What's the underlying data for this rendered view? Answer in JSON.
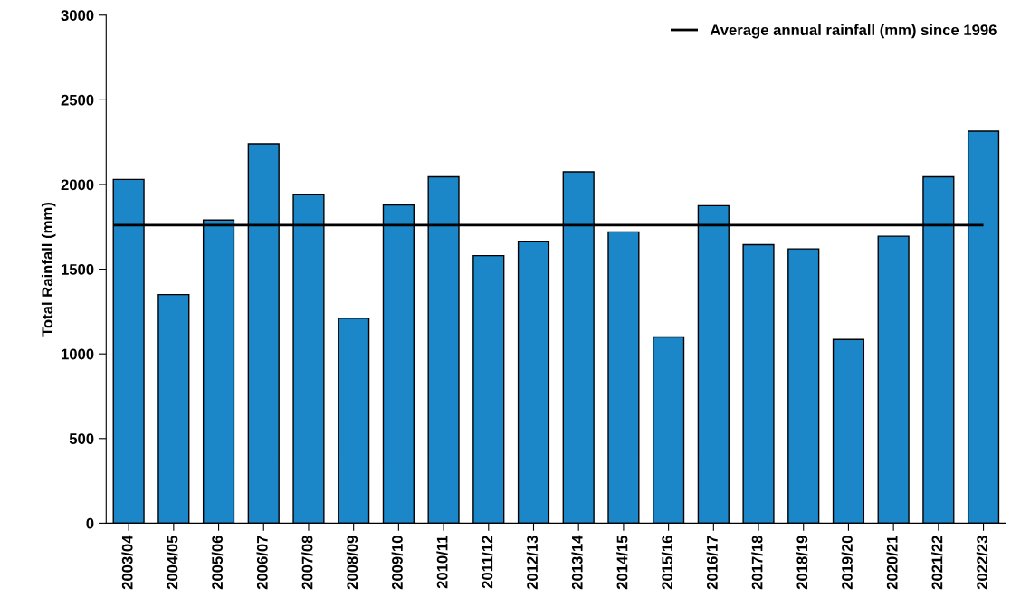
{
  "chart_data": {
    "type": "bar",
    "ylabel": "Total Rainfall (mm)",
    "categories": [
      "2003/04",
      "2004/05",
      "2005/06",
      "2006/07",
      "2007/08",
      "2008/09",
      "2009/10",
      "2010/11",
      "2011/12",
      "2012/13",
      "2013/14",
      "2014/15",
      "2015/16",
      "2016/17",
      "2017/18",
      "2018/19",
      "2019/20",
      "2020/21",
      "2021/22",
      "2022/23"
    ],
    "values": [
      2030,
      1350,
      1790,
      2240,
      1940,
      1210,
      1880,
      2045,
      1580,
      1665,
      2075,
      1720,
      1100,
      1875,
      1645,
      1620,
      1085,
      1695,
      2045,
      2315
    ],
    "color": "#1b87c9",
    "ylim": [
      0,
      3000
    ],
    "yticks": [
      0,
      500,
      1000,
      1500,
      2000,
      2500,
      3000
    ],
    "ref_lines": [
      {
        "axis": "y",
        "value": 1760,
        "label": "Average annual rainfall (mm) since 1996",
        "color": "#000000",
        "line_style": "solid"
      }
    ],
    "legend": "top right",
    "grid": false
  }
}
